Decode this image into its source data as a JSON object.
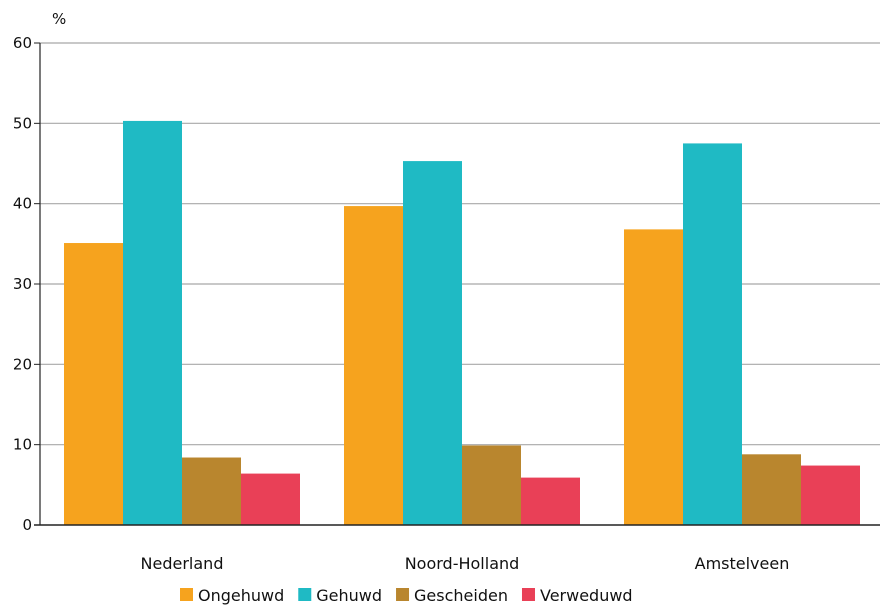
{
  "chart_data": {
    "type": "bar",
    "ylabel": "%",
    "ylim": [
      0,
      60
    ],
    "yticks": [
      0,
      10,
      20,
      30,
      40,
      50,
      60
    ],
    "grid": true,
    "legend_position": "bottom",
    "categories": [
      "Nederland",
      "Noord-Holland",
      "Amstelveen"
    ],
    "series": [
      {
        "name": "Ongehuwd",
        "color": "#F6A31E",
        "values": [
          35.1,
          39.7,
          36.8
        ]
      },
      {
        "name": "Gehuwd",
        "color": "#1FBAC4",
        "values": [
          50.3,
          45.3,
          47.5
        ]
      },
      {
        "name": "Gescheiden",
        "color": "#B9862E",
        "values": [
          8.4,
          9.9,
          8.8
        ]
      },
      {
        "name": "Verweduwd",
        "color": "#E94057",
        "values": [
          6.4,
          5.9,
          7.4
        ]
      }
    ]
  }
}
